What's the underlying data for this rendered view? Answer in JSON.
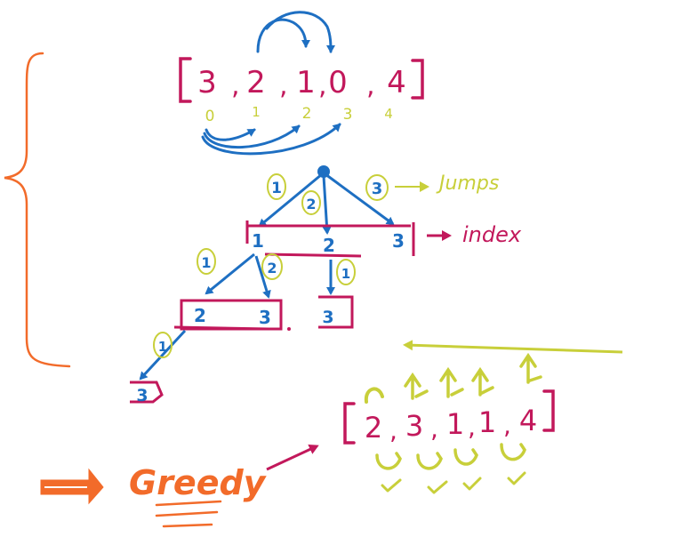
{
  "colors": {
    "magenta": "#c2185b",
    "blue": "#1e6fc2",
    "yellow": "#c8cf3a",
    "orange": "#f26b2a",
    "white": "#ffffff"
  },
  "top_array": {
    "values": [
      "3",
      "2",
      "1",
      "0",
      "4"
    ],
    "indices": [
      "0",
      "1",
      "2",
      "3",
      "4"
    ]
  },
  "tree": {
    "jump_weights": [
      "1",
      "2",
      "3"
    ],
    "jumps_label": "Jumps",
    "level1_indices": [
      "1",
      "2",
      "3"
    ],
    "index_label": "index",
    "left_weights": [
      "1",
      "2"
    ],
    "mid_weight": "1",
    "mid_leaf": "3",
    "level2_indices": [
      "2",
      "3"
    ],
    "deep_weight": "1",
    "deep_leaf": "3"
  },
  "greedy": {
    "label": "Greedy",
    "array": [
      "2",
      "3",
      "1",
      "1",
      "4"
    ]
  }
}
